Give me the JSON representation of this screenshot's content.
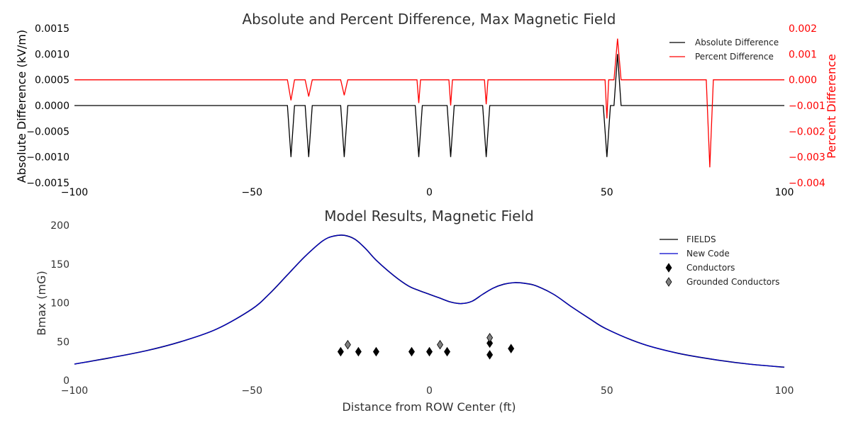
{
  "chart_data": [
    {
      "type": "line",
      "title": "Absolute and Percent Difference, Max Magnetic Field",
      "xlabel": "",
      "ylabel": "Absolute Difference (kV/m)",
      "ylabel_right": "Percent Difference",
      "xlim": [
        -100,
        100
      ],
      "ylim": [
        -0.0015,
        0.0015
      ],
      "ylim_right": [
        -0.004,
        0.002
      ],
      "x_ticks": [
        "−100",
        "−50",
        "0",
        "50",
        "100"
      ],
      "y_ticks": [
        "0.0015",
        "0.0010",
        "0.0005",
        "0.0000",
        "−0.0005",
        "−0.0010",
        "−0.0015"
      ],
      "y_ticks_right": [
        "0.002",
        "0.001",
        "0.000",
        "−0.001",
        "−0.002",
        "−0.003",
        "−0.004"
      ],
      "grid": false,
      "legend_position": "top-right",
      "series": [
        {
          "name": "Absolute Difference",
          "axis": "left",
          "color": "#000000",
          "x": [
            -100,
            -40,
            -39,
            -38,
            -35,
            -34,
            -33,
            -25,
            -24,
            -23,
            -4,
            -3,
            -2,
            5,
            6,
            7,
            15,
            16,
            17,
            49,
            50,
            51,
            52,
            53,
            54,
            100
          ],
          "y": [
            0,
            0,
            -0.001,
            0,
            0,
            -0.001,
            0,
            0,
            -0.001,
            0,
            0,
            -0.001,
            0,
            0,
            -0.001,
            0,
            0,
            -0.001,
            0,
            0,
            -0.001,
            0,
            0,
            0.001,
            0,
            0
          ]
        },
        {
          "name": "Percent Difference",
          "axis": "right",
          "color": "#ff0000",
          "x": [
            -100,
            -40,
            -39,
            -38,
            -35,
            -34,
            -33,
            -25,
            -24,
            -23,
            -3.5,
            -3,
            -2.5,
            5.5,
            6,
            6.5,
            15.5,
            16,
            16.5,
            49.5,
            50,
            50.5,
            52,
            53,
            54,
            78,
            79,
            80,
            100
          ],
          "y": [
            0,
            0,
            -0.0008,
            0,
            0,
            -0.00065,
            0,
            0,
            -0.0006,
            0,
            0,
            -0.0009,
            0,
            0,
            -0.001,
            0,
            0,
            -0.00095,
            0,
            0,
            -0.0015,
            0,
            0,
            0.0016,
            0,
            0,
            -0.0034,
            0,
            0
          ]
        }
      ]
    },
    {
      "type": "line",
      "title": "Model Results, Magnetic Field",
      "xlabel": "Distance from ROW Center (ft)",
      "ylabel": "Bmax (mG)",
      "xlim": [
        -100,
        100
      ],
      "ylim": [
        0,
        200
      ],
      "x_ticks": [
        "−100",
        "−50",
        "0",
        "50",
        "100"
      ],
      "y_ticks": [
        "200",
        "150",
        "100",
        "50",
        "0"
      ],
      "grid": false,
      "legend_position": "top-right",
      "series": [
        {
          "name": "FIELDS",
          "color": "#000000",
          "x": [
            -100,
            -90,
            -80,
            -70,
            -60,
            -50,
            -45,
            -40,
            -35,
            -30,
            -27,
            -24,
            -21,
            -18,
            -15,
            -10,
            -6,
            -3,
            0,
            3,
            6,
            9,
            12,
            15,
            18,
            21,
            24,
            27,
            30,
            35,
            40,
            45,
            50,
            60,
            70,
            80,
            90,
            100
          ],
          "y": [
            21,
            29,
            38,
            50,
            66,
            92,
            112,
            136,
            160,
            180,
            186,
            187,
            182,
            170,
            155,
            135,
            122,
            116,
            111,
            106,
            101,
            99,
            102,
            111,
            119,
            124,
            126,
            125,
            122,
            111,
            95,
            80,
            66,
            47,
            35,
            27,
            21,
            17
          ]
        },
        {
          "name": "New Code",
          "color": "#0000cc",
          "x": [
            -100,
            -90,
            -80,
            -70,
            -60,
            -50,
            -45,
            -40,
            -35,
            -30,
            -27,
            -24,
            -21,
            -18,
            -15,
            -10,
            -6,
            -3,
            0,
            3,
            6,
            9,
            12,
            15,
            18,
            21,
            24,
            27,
            30,
            35,
            40,
            45,
            50,
            60,
            70,
            80,
            90,
            100
          ],
          "y": [
            21,
            29,
            38,
            50,
            66,
            92,
            112,
            136,
            160,
            180,
            186,
            187,
            182,
            170,
            155,
            135,
            122,
            116,
            111,
            106,
            101,
            99,
            102,
            111,
            119,
            124,
            126,
            125,
            122,
            111,
            95,
            80,
            66,
            47,
            35,
            27,
            21,
            17
          ]
        },
        {
          "name": "Conductors",
          "kind": "points",
          "color": "#000000",
          "x": [
            -25,
            -20,
            -15,
            -5,
            0,
            5,
            17,
            17,
            23
          ],
          "y": [
            37,
            37,
            37,
            37,
            37,
            37,
            48,
            33,
            41
          ]
        },
        {
          "name": "Grounded Conductors",
          "kind": "points",
          "color": "#808080",
          "x": [
            -23,
            3,
            17
          ],
          "y": [
            46,
            46,
            55
          ]
        }
      ]
    }
  ]
}
